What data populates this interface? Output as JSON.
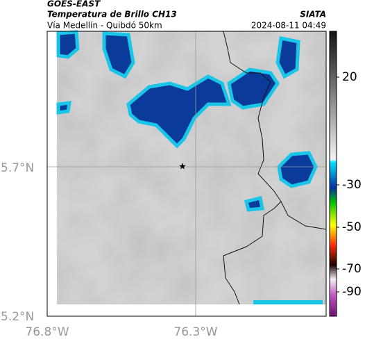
{
  "header": {
    "source": "GOES-EAST",
    "title": "Temperatura de Brillo CH13",
    "org": "SIATA",
    "route": "Vía Medellín - Quibdó 50km",
    "datetime": "2024-08-11 04:49"
  },
  "axes": {
    "lat_labels": [
      "5.7°N",
      "5.2°N"
    ],
    "lon_labels": [
      "76.8°W",
      "76.3°W"
    ]
  },
  "colorbar": {
    "ticks": [
      20,
      -30,
      -50,
      -70,
      -90
    ]
  }
}
